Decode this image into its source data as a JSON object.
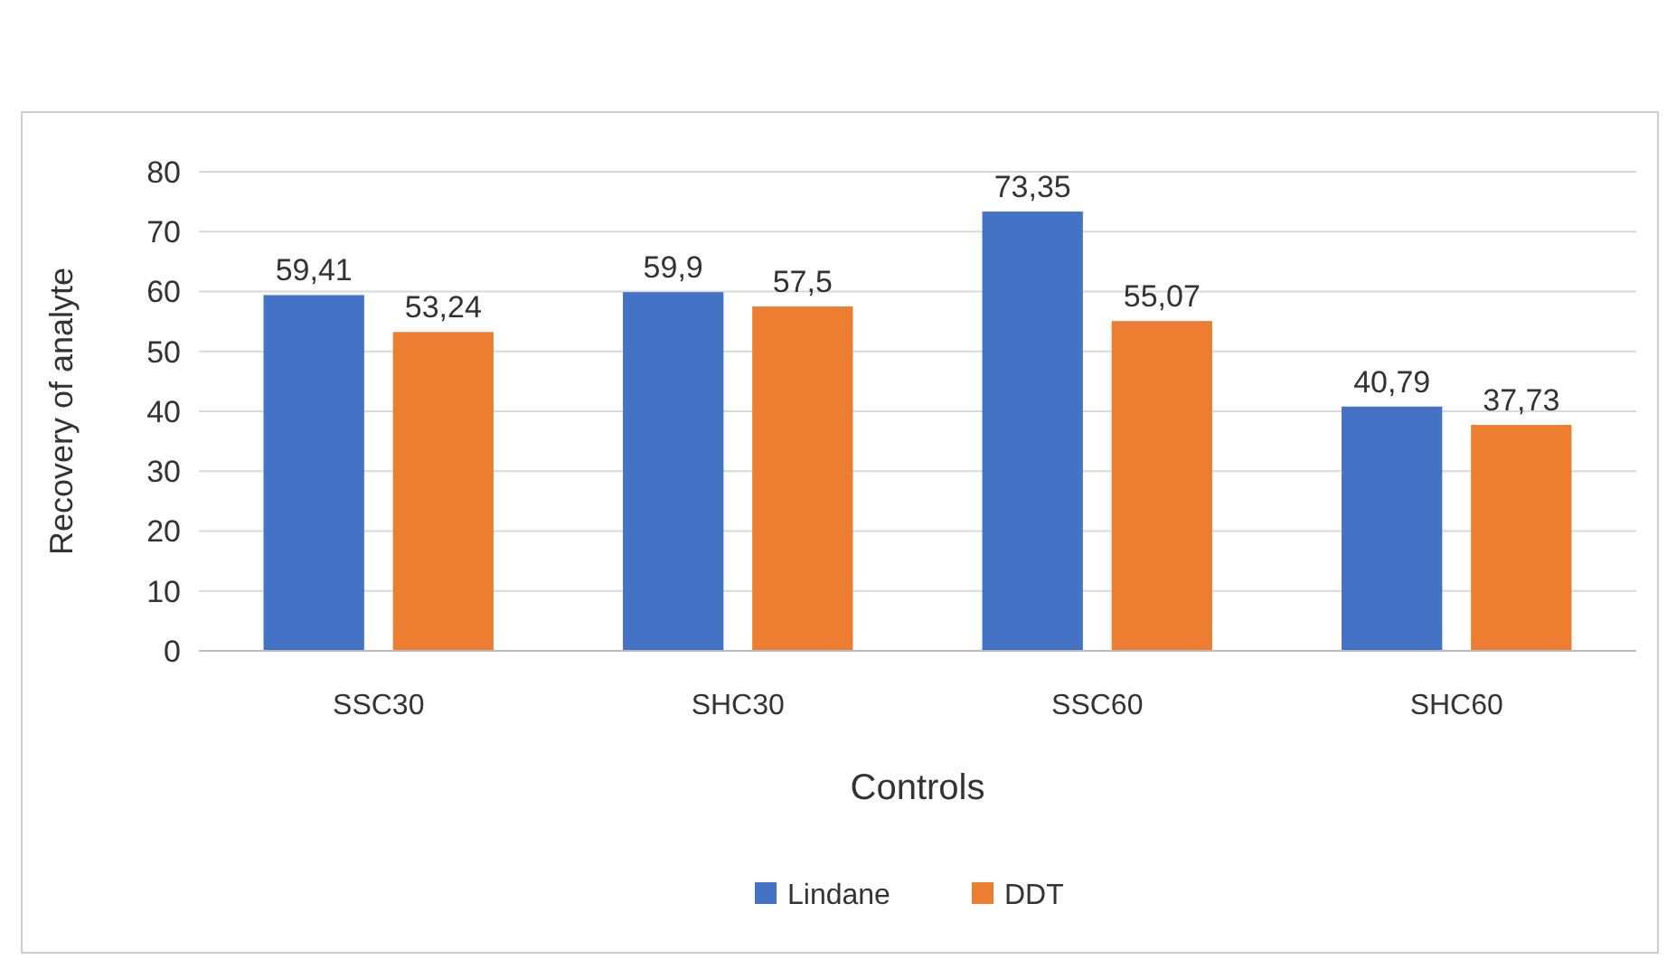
{
  "chart_data": {
    "type": "bar",
    "xlabel": "Controls",
    "ylabel": "Recovery of analyte",
    "categories": [
      "SSC30",
      "SHC30",
      "SSC60",
      "SHC60"
    ],
    "series": [
      {
        "name": "Lindane",
        "color": "#4472c4",
        "values": [
          59.41,
          59.9,
          73.35,
          40.79
        ],
        "value_labels": [
          "59,41",
          "59,9",
          "73,35",
          "40,79"
        ]
      },
      {
        "name": "DDT",
        "color": "#ed7d31",
        "values": [
          53.24,
          57.5,
          55.07,
          37.73
        ],
        "value_labels": [
          "53,24",
          "57,5",
          "55,07",
          "37,73"
        ]
      }
    ],
    "ylim": [
      0,
      80
    ],
    "yticks": [
      0,
      10,
      20,
      30,
      40,
      50,
      60,
      70,
      80
    ],
    "grid": "y",
    "legend": "bottom"
  }
}
